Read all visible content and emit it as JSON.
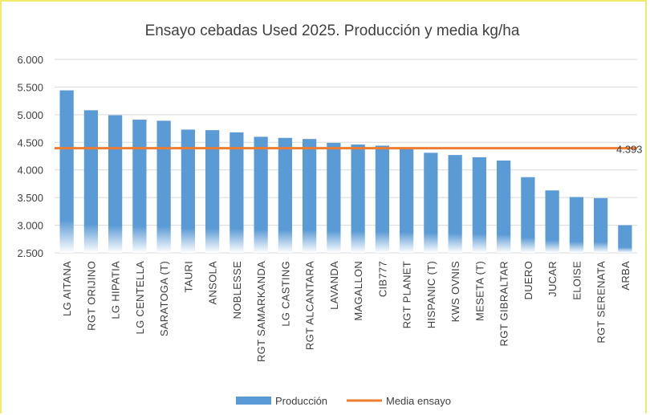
{
  "chart_data": {
    "type": "bar",
    "title": "Ensayo cebadas Used 2025. Producción y media kg/ha",
    "xlabel": "",
    "ylabel": "",
    "ylim": [
      2500,
      6000
    ],
    "yticks": [
      2500,
      3000,
      3500,
      4000,
      4500,
      5000,
      5500,
      6000
    ],
    "ytick_labels": [
      "2.500",
      "3.000",
      "3.500",
      "4.000",
      "4.500",
      "5.000",
      "5.500",
      "6.000"
    ],
    "grid": true,
    "legend_position": "bottom",
    "categories": [
      "LG AITANA",
      "RGT ORIJINO",
      "LG HIPATIA",
      "LG CENTELLA",
      "SARATOGA (T)",
      "TAURI",
      "ANSOLA",
      "NOBLESSE",
      "RGT SAMARKANDA",
      "LG CASTING",
      "RGT ALCANTARA",
      "LAVANDA",
      "MAGALLON",
      "CIB777",
      "RGT PLANET",
      "HISPANIC (T)",
      "KWS OVNIS",
      "MESETA (T)",
      "RGT GIBRALTAR",
      "DUERO",
      "JUCAR",
      "ELOISE",
      "RGT SERENATA",
      "ARBA"
    ],
    "series": [
      {
        "name": "Producción",
        "type": "bar",
        "color": "#5b9bd5",
        "values": [
          5440,
          5080,
          4990,
          4910,
          4890,
          4730,
          4720,
          4680,
          4600,
          4580,
          4560,
          4490,
          4460,
          4440,
          4380,
          4310,
          4270,
          4230,
          4170,
          3870,
          3630,
          3510,
          3490,
          3000
        ]
      },
      {
        "name": "Media ensayo",
        "type": "line",
        "color": "#ed7d31",
        "value": 4393,
        "label": "4.393"
      }
    ]
  }
}
